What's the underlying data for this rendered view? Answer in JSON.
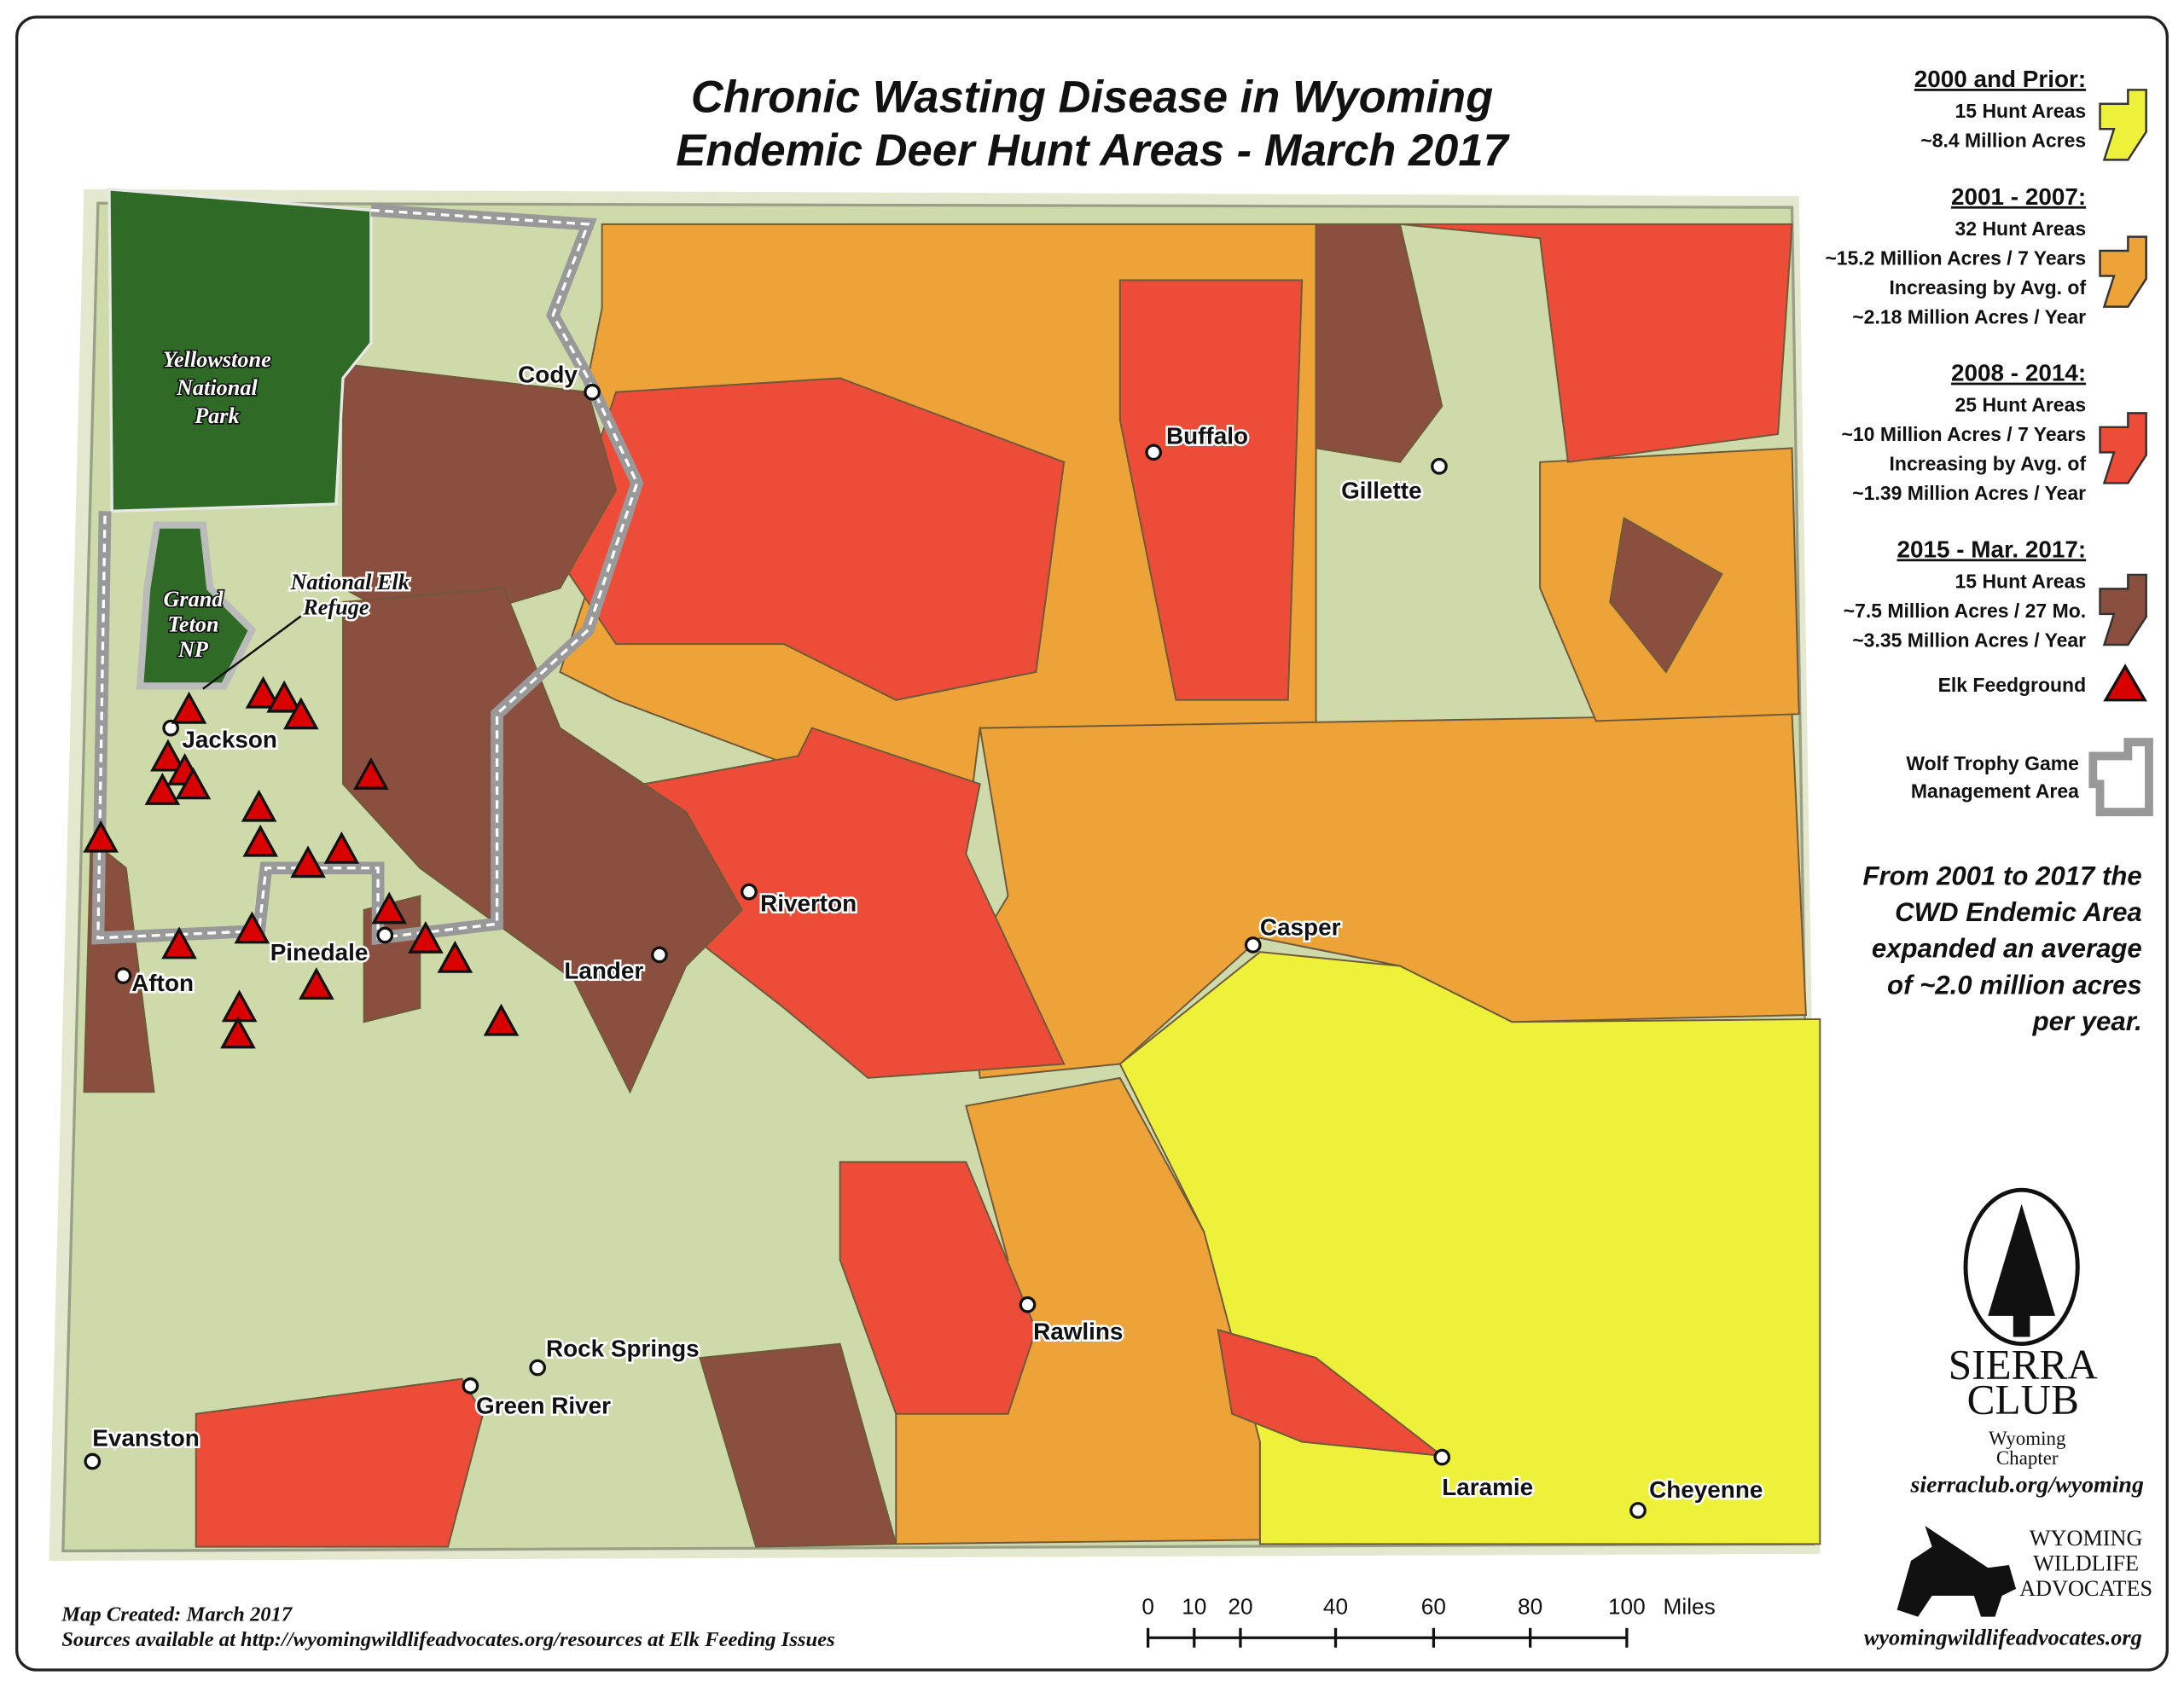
{
  "title": [
    "Chronic Wasting Disease in Wyoming",
    "Endemic Deer Hunt Areas - March 2017"
  ],
  "legend": [
    {
      "heading": "2000 and Prior:",
      "lines": [
        "15 Hunt Areas",
        "~8.4 Million Acres"
      ]
    },
    {
      "heading": "2001 - 2007:",
      "lines": [
        "32 Hunt Areas",
        "~15.2 Million Acres / 7 Years",
        "Increasing by Avg. of",
        "~2.18 Million Acres / Year"
      ]
    },
    {
      "heading": "2008 - 2014:",
      "lines": [
        "25 Hunt Areas",
        "~10 Million Acres / 7 Years",
        "Increasing by Avg. of",
        "~1.39 Million Acres / Year"
      ]
    },
    {
      "heading": "2015 - Mar. 2017:",
      "lines": [
        "15 Hunt Areas",
        "~7.5 Million Acres / 27 Mo.",
        "~3.35 Million Acres / Year"
      ]
    }
  ],
  "feedground": "Elk Feedground",
  "wolf_area": [
    "Wolf Trophy Game",
    "Management Area"
  ],
  "note": [
    "From 2001 to 2017 the",
    "CWD Endemic Area",
    "expanded an average",
    "of ~2.0 million acres",
    "per year."
  ],
  "places": [
    "Cody",
    "Buffalo",
    "Gillette",
    "Jackson",
    "Riverton",
    "Casper",
    "Lander",
    "Pinedale",
    "Afton",
    "Rawlins",
    "Rock Springs",
    "Green River",
    "Evanston",
    "Laramie",
    "Cheyenne"
  ],
  "parks": [
    [
      "Yellowstone",
      "National",
      "Park"
    ],
    [
      "Grand",
      "Teton",
      "NP"
    ],
    [
      "National Elk",
      "Refuge"
    ]
  ],
  "scale": {
    "ticks": [
      "0",
      "10",
      "20",
      "40",
      "60",
      "80",
      "100"
    ],
    "unit": "Miles"
  },
  "credits": [
    "Map Created: March 2017",
    "Sources available at http://wyomingwildlifeadvocates.org/resources at Elk Feeding Issues"
  ],
  "sierra_club": [
    "SIERRA",
    "CLUB",
    "Wyoming",
    "Chapter",
    "sierraclub.org/wyoming"
  ],
  "wwa": [
    "WYOMING",
    "WILDLIFE",
    "ADVOCATES",
    "wyomingwildlifeadvocates.org"
  ]
}
